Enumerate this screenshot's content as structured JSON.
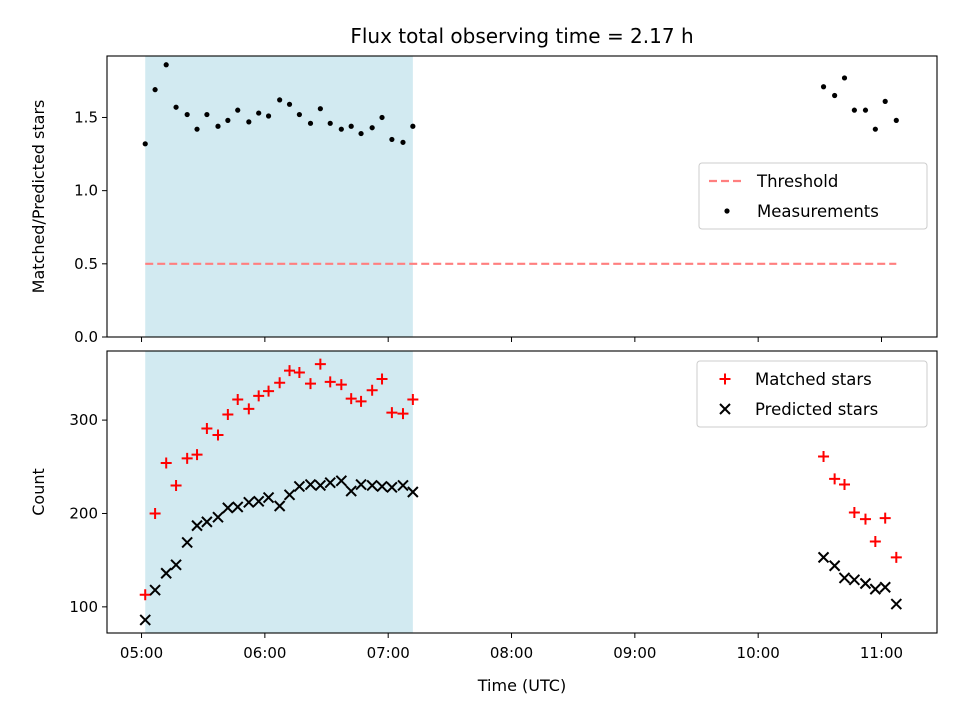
{
  "chart_data": [
    {
      "type": "scatter",
      "title": "Flux total observing time = 2.17 h",
      "xlabel": "",
      "ylabel": "Matched/Predicted stars",
      "xlim": [
        4.72,
        11.45
      ],
      "ylim": [
        0.0,
        1.92
      ],
      "yticks": [
        {
          "value": 0.0,
          "label": "0.0"
        },
        {
          "value": 0.5,
          "label": "0.5"
        },
        {
          "value": 1.0,
          "label": "1.0"
        },
        {
          "value": 1.5,
          "label": "1.5"
        }
      ],
      "shaded_region": {
        "x": [
          5.03,
          7.2
        ],
        "color": "#add8e6"
      },
      "legend_position": "center-right",
      "series": [
        {
          "name": "Threshold",
          "kind": "dashed-line",
          "color": "#ff7f7f",
          "x": [
            5.03,
            11.12
          ],
          "y": [
            0.5,
            0.5
          ]
        },
        {
          "name": "Measurements",
          "kind": "dot",
          "color": "#000000",
          "x": [
            5.03,
            5.11,
            5.2,
            5.28,
            5.37,
            5.45,
            5.53,
            5.62,
            5.7,
            5.78,
            5.87,
            5.95,
            6.03,
            6.12,
            6.2,
            6.28,
            6.37,
            6.45,
            6.53,
            6.62,
            6.7,
            6.78,
            6.87,
            6.95,
            7.03,
            7.12,
            7.2,
            10.53,
            10.62,
            10.7,
            10.78,
            10.87,
            10.95,
            11.03,
            11.12
          ],
          "y": [
            1.32,
            1.69,
            1.86,
            1.57,
            1.52,
            1.42,
            1.52,
            1.44,
            1.48,
            1.55,
            1.47,
            1.53,
            1.51,
            1.62,
            1.59,
            1.52,
            1.46,
            1.56,
            1.46,
            1.42,
            1.44,
            1.39,
            1.43,
            1.5,
            1.35,
            1.33,
            1.44,
            1.71,
            1.65,
            1.77,
            1.55,
            1.55,
            1.42,
            1.61,
            1.48
          ]
        }
      ]
    },
    {
      "type": "scatter",
      "title": "",
      "xlabel": "Time (UTC)",
      "ylabel": "Count",
      "xlim": [
        4.72,
        11.45
      ],
      "ylim": [
        72,
        374
      ],
      "yticks": [
        {
          "value": 100,
          "label": "100"
        },
        {
          "value": 200,
          "label": "200"
        },
        {
          "value": 300,
          "label": "300"
        }
      ],
      "xticks": [
        {
          "value": 5,
          "label": "05:00"
        },
        {
          "value": 6,
          "label": "06:00"
        },
        {
          "value": 7,
          "label": "07:00"
        },
        {
          "value": 8,
          "label": "08:00"
        },
        {
          "value": 9,
          "label": "09:00"
        },
        {
          "value": 10,
          "label": "10:00"
        },
        {
          "value": 11,
          "label": "11:00"
        }
      ],
      "shaded_region": {
        "x": [
          5.03,
          7.2
        ],
        "color": "#add8e6"
      },
      "legend_position": "top-right",
      "series": [
        {
          "name": "Matched stars",
          "kind": "plus",
          "color": "#ff0000",
          "x": [
            5.03,
            5.11,
            5.2,
            5.28,
            5.37,
            5.45,
            5.53,
            5.62,
            5.7,
            5.78,
            5.87,
            5.95,
            6.03,
            6.12,
            6.2,
            6.28,
            6.37,
            6.45,
            6.53,
            6.62,
            6.7,
            6.78,
            6.87,
            6.95,
            7.03,
            7.12,
            7.2,
            10.53,
            10.62,
            10.7,
            10.78,
            10.87,
            10.95,
            11.03,
            11.12
          ],
          "y": [
            113,
            200,
            254,
            230,
            259,
            263,
            291,
            284,
            306,
            322,
            312,
            326,
            331,
            340,
            353,
            351,
            339,
            360,
            341,
            338,
            323,
            320,
            332,
            344,
            308,
            307,
            322,
            261,
            237,
            231,
            201,
            194,
            170,
            195,
            153
          ]
        },
        {
          "name": "Predicted stars",
          "kind": "x",
          "color": "#000000",
          "x": [
            5.03,
            5.11,
            5.2,
            5.28,
            5.37,
            5.45,
            5.53,
            5.62,
            5.7,
            5.78,
            5.87,
            5.95,
            6.03,
            6.12,
            6.2,
            6.28,
            6.37,
            6.45,
            6.53,
            6.62,
            6.7,
            6.78,
            6.87,
            6.95,
            7.03,
            7.12,
            7.2,
            10.53,
            10.62,
            10.7,
            10.78,
            10.87,
            10.95,
            11.03,
            11.12
          ],
          "y": [
            86,
            118,
            136,
            145,
            169,
            187,
            191,
            196,
            206,
            207,
            212,
            213,
            217,
            208,
            220,
            229,
            231,
            230,
            233,
            235,
            224,
            231,
            230,
            229,
            228,
            230,
            223,
            153,
            144,
            131,
            129,
            125,
            119,
            121,
            103
          ]
        }
      ]
    }
  ]
}
